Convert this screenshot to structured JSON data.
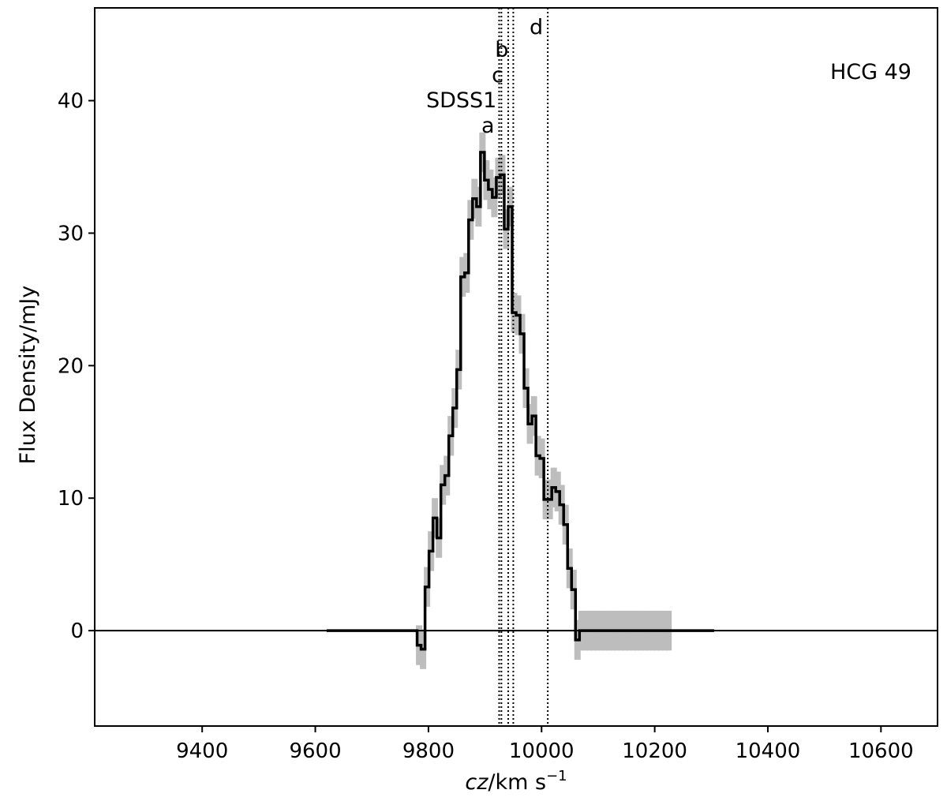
{
  "chart_data": {
    "type": "line",
    "title": "",
    "panel_label": "HCG 49",
    "xlabel": {
      "italic": "cz",
      "unit": "/km s",
      "sup": "−1"
    },
    "ylabel": "Flux Density/mJy",
    "xlim": [
      9210,
      10700
    ],
    "ylim": [
      -7.2,
      47.0
    ],
    "xticks": [
      9400,
      9600,
      9800,
      10000,
      10200,
      10400,
      10600
    ],
    "yticks": [
      0,
      10,
      20,
      30,
      40
    ],
    "grid": false,
    "zero_line": true,
    "series": [
      {
        "style": "step",
        "color": "#000000",
        "x": [
          9620,
          9780,
          9787,
          9794,
          9801,
          9808,
          9815,
          9822,
          9829,
          9836,
          9843,
          9850,
          9857,
          9864,
          9871,
          9878,
          9885,
          9892,
          9899,
          9906,
          9913,
          9920,
          9927,
          9934,
          9941,
          9948,
          9955,
          9962,
          9969,
          9976,
          9983,
          9990,
          9997,
          10004,
          10011,
          10018,
          10025,
          10032,
          10039,
          10046,
          10053,
          10060,
          10067,
          10074,
          10081,
          10088,
          10095,
          10102,
          10109,
          10116,
          10123,
          10130,
          10137,
          10144,
          10151,
          10158,
          10165,
          10172,
          10179,
          10186,
          10193,
          10200,
          10207,
          10214,
          10221,
          10228,
          10305
        ],
        "values": [
          0,
          -1.1,
          -1.4,
          3.3,
          6.0,
          8.5,
          7.0,
          11.0,
          11.7,
          14.7,
          16.8,
          19.7,
          26.7,
          27.0,
          31.0,
          32.6,
          32.0,
          36.1,
          34.0,
          33.3,
          32.7,
          34.2,
          34.4,
          30.3,
          32.0,
          24.0,
          23.8,
          22.4,
          18.3,
          15.6,
          16.2,
          13.2,
          13.0,
          9.9,
          9.9,
          10.8,
          10.5,
          9.5,
          8.0,
          4.7,
          3.1,
          -0.7,
          0,
          0,
          0,
          0,
          0,
          0,
          0,
          0,
          0,
          0,
          0,
          0,
          0,
          0,
          0,
          0,
          0,
          0,
          0,
          0,
          0,
          0,
          0,
          0,
          0
        ]
      }
    ],
    "error_band": {
      "color": "#bdbdbd",
      "halfwidth": 1.5
    },
    "vlines": [
      {
        "x": 9925,
        "label": "a",
        "label_y": 37.6
      },
      {
        "x": 9929,
        "label": "SDSS1",
        "label_y": 39.5
      },
      {
        "x": 9941,
        "label": "c",
        "label_y": 41.4
      },
      {
        "x": 9950,
        "label": "b",
        "label_y": 43.3
      },
      {
        "x": 10011,
        "label": "d",
        "label_y": 45.0
      }
    ]
  }
}
